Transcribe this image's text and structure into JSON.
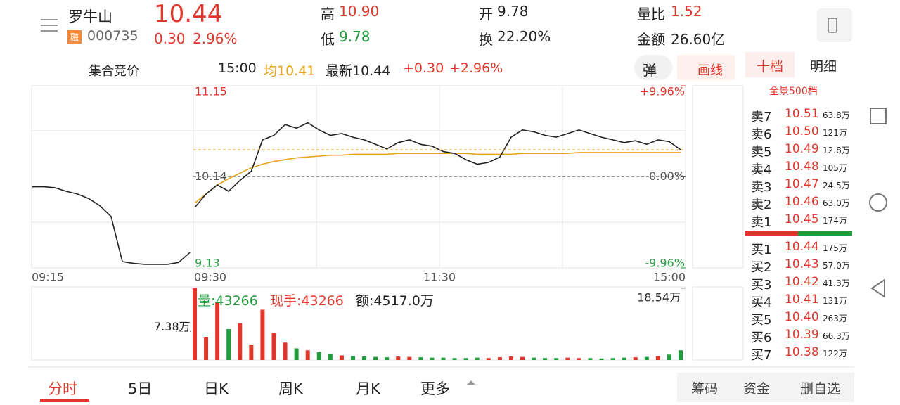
{
  "header": {
    "name": "罗牛山",
    "tag": "融",
    "code": "000735",
    "price": "10.44",
    "change": "0.30",
    "change_pct": "2.96%",
    "stats": [
      {
        "label": "高",
        "value": "10.90"
      },
      {
        "label": "低",
        "value": "9.78"
      },
      {
        "label": "开",
        "value": "9.78"
      },
      {
        "label": "换",
        "value": "22.20%"
      },
      {
        "label": "量比",
        "value": "1.52"
      },
      {
        "label": "金额",
        "value": "26.60亿"
      }
    ]
  },
  "subheader": {
    "auction": "集合竞价",
    "time": "15:00",
    "avg": "均10.41",
    "latest": "最新10.44",
    "change": "+0.30",
    "change_pct": "+2.96%",
    "popup": "弹",
    "draw": "画线"
  },
  "order_book": {
    "tabs": [
      "十档",
      "明细"
    ],
    "full": "全景500档",
    "sell": [
      {
        "label": "卖7",
        "price": "10.51",
        "volume": "63.8万"
      },
      {
        "label": "卖6",
        "price": "10.50",
        "volume": "121万"
      },
      {
        "label": "卖5",
        "price": "10.49",
        "volume": "12.8万"
      },
      {
        "label": "卖4",
        "price": "10.48",
        "volume": "105万"
      },
      {
        "label": "卖3",
        "price": "10.47",
        "volume": "24.5万"
      },
      {
        "label": "卖2",
        "price": "10.46",
        "volume": "63.0万"
      },
      {
        "label": "卖1",
        "price": "10.45",
        "volume": "174万"
      }
    ],
    "buy": [
      {
        "label": "买1",
        "price": "10.44",
        "volume": "175万"
      },
      {
        "label": "买2",
        "price": "10.43",
        "volume": "57.0万"
      },
      {
        "label": "买3",
        "price": "10.42",
        "volume": "41.3万"
      },
      {
        "label": "买4",
        "price": "10.41",
        "volume": "131万"
      },
      {
        "label": "买5",
        "price": "10.40",
        "volume": "263万"
      },
      {
        "label": "买6",
        "price": "10.39",
        "volume": "66.3万"
      },
      {
        "label": "买7",
        "price": "10.38",
        "volume": "122万"
      }
    ]
  },
  "chart_data": {
    "type": "line",
    "ylim": [
      9.13,
      11.15
    ],
    "yticks": [
      11.15,
      10.14,
      9.13
    ],
    "y2lim": [
      -9.96,
      9.96
    ],
    "y2ticks": [
      {
        "value": 9.96,
        "label": "+9.96%"
      },
      {
        "value": 0,
        "label": "0.00%"
      },
      {
        "value": -9.96,
        "label": "-9.96%"
      }
    ],
    "time_labels": [
      "09:15",
      "09:30",
      "11:30",
      "15:00"
    ],
    "price": [
      9.8,
      9.95,
      10.05,
      9.98,
      10.1,
      10.2,
      10.55,
      10.6,
      10.72,
      10.68,
      10.74,
      10.66,
      10.6,
      10.62,
      10.58,
      10.55,
      10.5,
      10.45,
      10.52,
      10.55,
      10.5,
      10.48,
      10.42,
      10.4,
      10.33,
      10.28,
      10.3,
      10.36,
      10.58,
      10.66,
      10.64,
      10.6,
      10.58,
      10.62,
      10.66,
      10.62,
      10.58,
      10.55,
      10.52,
      10.54,
      10.5,
      10.55,
      10.53,
      10.44
    ],
    "average": [
      9.85,
      9.95,
      10.05,
      10.12,
      10.18,
      10.24,
      10.28,
      10.31,
      10.33,
      10.35,
      10.36,
      10.37,
      10.38,
      10.38,
      10.39,
      10.39,
      10.39,
      10.39,
      10.4,
      10.4,
      10.4,
      10.4,
      10.4,
      10.4,
      10.4,
      10.39,
      10.39,
      10.39,
      10.39,
      10.4,
      10.4,
      10.4,
      10.4,
      10.4,
      10.41,
      10.41,
      10.41,
      10.41,
      10.41,
      10.41,
      10.41,
      10.41,
      10.41,
      10.41
    ],
    "auction": [
      10.03,
      10.03,
      10.02,
      9.98,
      9.95,
      9.9,
      9.82,
      9.7,
      9.2,
      9.18,
      9.17,
      9.17,
      9.17,
      9.19,
      9.3
    ],
    "volume": [
      185400,
      60000,
      150000,
      80000,
      95000,
      40000,
      130000,
      70000,
      45000,
      30000,
      25000,
      20000,
      15000,
      12000,
      10000,
      9000,
      8000,
      7000,
      9000,
      8000,
      7000,
      6000,
      6000,
      5000,
      5000,
      6000,
      5000,
      7000,
      9000,
      8000,
      6000,
      5000,
      5000,
      6000,
      5000,
      5000,
      4000,
      5000,
      6000,
      7000,
      8000,
      10000,
      14000,
      25000
    ],
    "volume_lim": [
      0,
      185400
    ],
    "volume_ticks": [
      {
        "value": 185400,
        "label": "18.54万"
      }
    ],
    "volume_note": {
      "value": 73800,
      "label": "7.38万"
    },
    "volume_info": [
      "量:43266",
      "现手:43266",
      "额:4517.0万"
    ],
    "price_color": "#222222",
    "average_color": "#e8a31c",
    "up_color": "#e0362c",
    "down_color": "#1f9c3c"
  },
  "footer": {
    "tabs": [
      "分时",
      "5日",
      "日K",
      "周K",
      "月K",
      "更多"
    ],
    "buttons": [
      "筹码",
      "资金",
      "删自选"
    ]
  }
}
